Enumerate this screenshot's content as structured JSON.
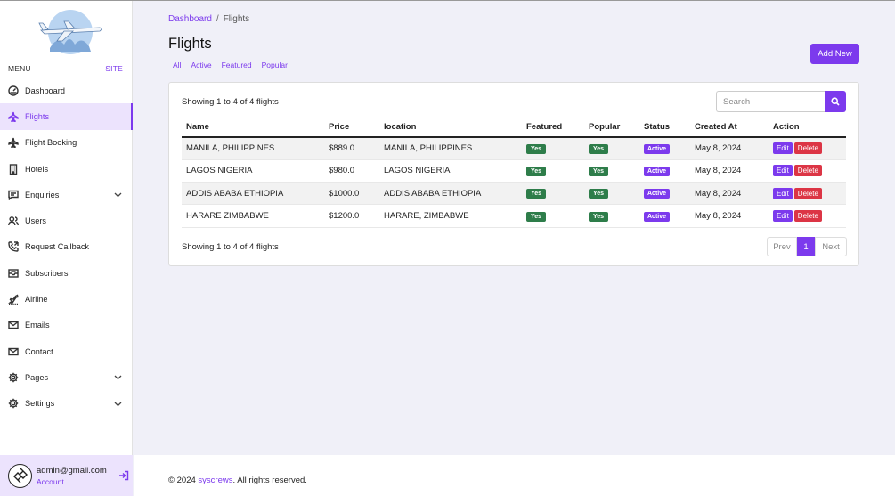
{
  "sidebar": {
    "menu_label": "MENU",
    "site_label": "SITE",
    "items": [
      {
        "label": "Dashboard",
        "icon": "dashboard-icon"
      },
      {
        "label": "Flights",
        "icon": "plane-icon"
      },
      {
        "label": "Flight Booking",
        "icon": "plane-icon"
      },
      {
        "label": "Hotels",
        "icon": "building-icon"
      },
      {
        "label": "Enquiries",
        "icon": "message-icon"
      },
      {
        "label": "Users",
        "icon": "users-icon"
      },
      {
        "label": "Request Callback",
        "icon": "phone-icon"
      },
      {
        "label": "Subscribers",
        "icon": "inbox-icon"
      },
      {
        "label": "Airline",
        "icon": "airline-icon"
      },
      {
        "label": "Emails",
        "icon": "mail-icon"
      },
      {
        "label": "Contact",
        "icon": "mail-icon"
      },
      {
        "label": "Pages",
        "icon": "gear-icon"
      },
      {
        "label": "Settings",
        "icon": "gear-icon"
      }
    ],
    "account": {
      "email": "admin@gmail.com",
      "role": "Account"
    }
  },
  "breadcrumb": {
    "root": "Dashboard",
    "sep": "/",
    "current": "Flights"
  },
  "page_title": "Flights",
  "filters": [
    "All",
    "Active",
    "Featured",
    "Popular"
  ],
  "add_button": "Add New",
  "search": {
    "placeholder": "Search"
  },
  "showing_text": "Showing 1 to 4 of 4 flights",
  "table": {
    "headers": [
      "Name",
      "Price",
      "location",
      "Featured",
      "Popular",
      "Status",
      "Created At",
      "Action"
    ],
    "rows": [
      {
        "name": "MANILA, PHILIPPINES",
        "price": "$889.0",
        "location": "MANILA, PHILIPPINES",
        "featured": "Yes",
        "popular": "Yes",
        "status": "Active",
        "created": "May 8, 2024",
        "edit": "Edit",
        "delete": "Delete"
      },
      {
        "name": "LAGOS NIGERIA",
        "price": "$980.0",
        "location": "LAGOS NIGERIA",
        "featured": "Yes",
        "popular": "Yes",
        "status": "Active",
        "created": "May 8, 2024",
        "edit": "Edit",
        "delete": "Delete"
      },
      {
        "name": "ADDIS ABABA ETHIOPIA",
        "price": "$1000.0",
        "location": "ADDIS ABABA ETHIOPIA",
        "featured": "Yes",
        "popular": "Yes",
        "status": "Active",
        "created": "May 8, 2024",
        "edit": "Edit",
        "delete": "Delete"
      },
      {
        "name": "HARARE ZIMBABWE",
        "price": "$1200.0",
        "location": "HARARE, ZIMBABWE",
        "featured": "Yes",
        "popular": "Yes",
        "status": "Active",
        "created": "May 8, 2024",
        "edit": "Edit",
        "delete": "Delete"
      }
    ]
  },
  "pagination": {
    "prev": "Prev",
    "current": "1",
    "next": "Next"
  },
  "footer": {
    "prefix": "© 2024",
    "link": "syscrews",
    "suffix": ". All rights reserved."
  },
  "colors": {
    "accent": "#7c3aed",
    "success": "#2e7d4a",
    "danger": "#dc3545"
  }
}
